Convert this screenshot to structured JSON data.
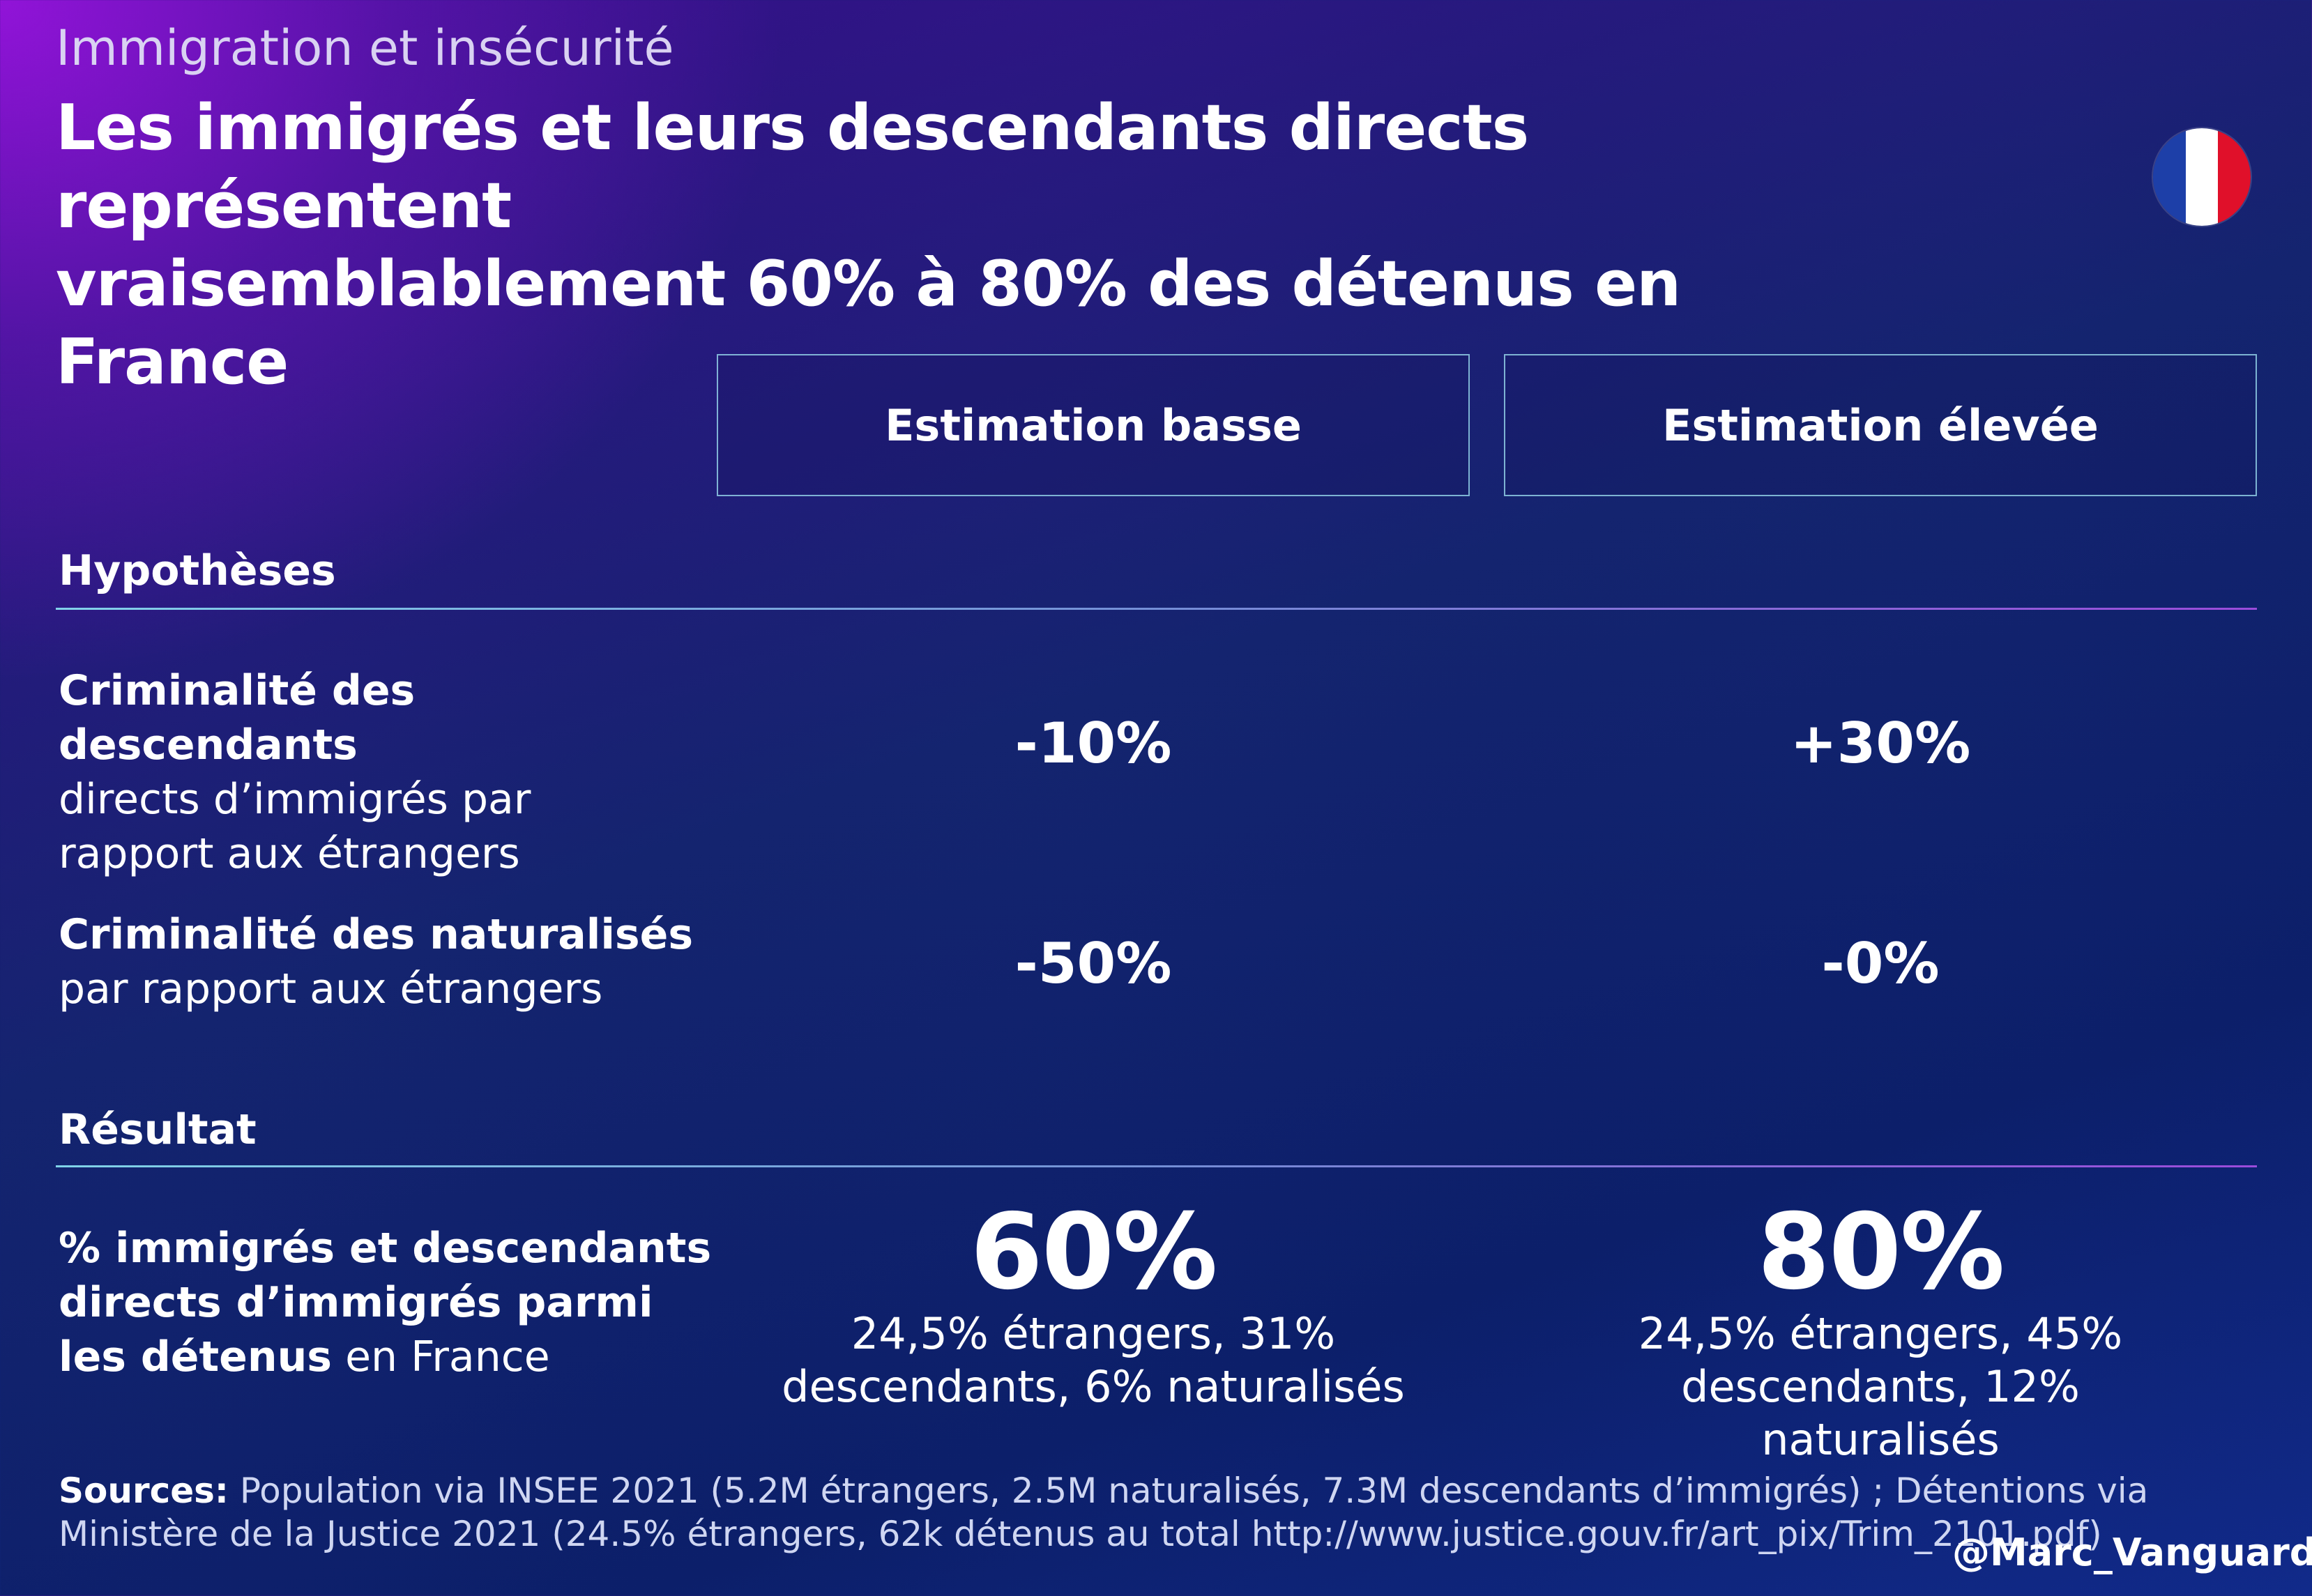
{
  "header": {
    "kicker": "Immigration et insécurité",
    "title_line1": "Les immigrés et leurs descendants directs représentent",
    "title_line2": "vraisemblablement 60% à 80% des détenus en France",
    "flag_colors": [
      "#1d3fa8",
      "#ffffff",
      "#e0102a"
    ]
  },
  "columns": {
    "low": "Estimation basse",
    "high": "Estimation élevée"
  },
  "hypotheses": {
    "heading": "Hypothèses",
    "rows": [
      {
        "label_bold": "Criminalité des descendants",
        "label_rest": "directs d’immigrés par rapport aux étrangers",
        "low": "-10%",
        "high": "+30%"
      },
      {
        "label_bold": "Criminalité des naturalisés",
        "label_rest": "par rapport aux étrangers",
        "low": "-50%",
        "high": "-0%"
      }
    ]
  },
  "result": {
    "heading": "Résultat",
    "label_bold": "% immigrés et descendants directs d’immigrés parmi les détenus",
    "label_rest": " en France",
    "low": "60%",
    "low_detail": "24,5% étrangers, 31% descendants, 6% naturalisés",
    "high": "80%",
    "high_detail": "24,5% étrangers, 45% descendants, 12% naturalisés"
  },
  "footer": {
    "sources_label": "Sources:",
    "sources_text": " Population via INSEE 2021 (5.2M étrangers, 2.5M naturalisés, 7.3M descendants d’immigrés) ; Détentions via Ministère de la Justice 2021 (24.5% étrangers, 62k détenus au total http://www.justice.gouv.fr/art_pix/Trim_2101.pdf)",
    "handle": "@Marc_Vanguard"
  }
}
